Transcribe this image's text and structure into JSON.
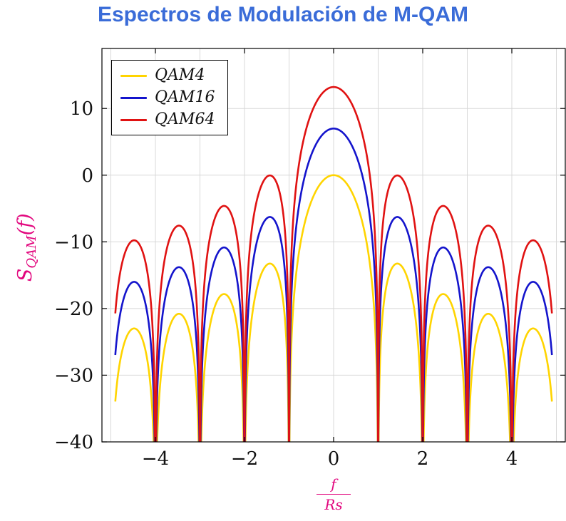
{
  "colors": {
    "title": "#3A6CD8",
    "axis_label": "#E2077E",
    "grid": "#D8D8D8",
    "frame": "#000000",
    "tick_text": "#111111"
  },
  "chart_data": {
    "type": "line",
    "title": "Espectros de Modulación de M-QAM",
    "xlabel": "f/Rs",
    "xlabel_parts": {
      "num": "f",
      "den": "Rs"
    },
    "ylabel": "S_QAM(f)",
    "ylabel_parts": {
      "main": "S",
      "sub": "QAM",
      "rest": "(f)"
    },
    "xlim": [
      -5.2,
      5.2
    ],
    "ylim": [
      -40,
      19
    ],
    "x_ticks": [
      -4,
      -2,
      0,
      2,
      4
    ],
    "y_ticks": [
      -40,
      -30,
      -20,
      -10,
      0,
      10
    ],
    "x_grid_step": 1,
    "grid": true,
    "legend_position": "top-left",
    "x_range": [
      -4.9,
      4.9
    ],
    "sample_step": 0.0025,
    "function": "y(x) = peak_db + 20*log10(|sin(pi*x)/(pi*x)|)  [dB, nulls at integer x, clipped at -40]",
    "series": [
      {
        "name": "QAM4",
        "color": "#FFD400",
        "peak_db": 0,
        "first_sidelobe_db": -13.26
      },
      {
        "name": "QAM16",
        "color": "#1414CC",
        "peak_db": 6.99,
        "first_sidelobe_db": -6.27
      },
      {
        "name": "QAM64",
        "color": "#E01212",
        "peak_db": 13.22,
        "first_sidelobe_db": -0.04
      }
    ]
  }
}
